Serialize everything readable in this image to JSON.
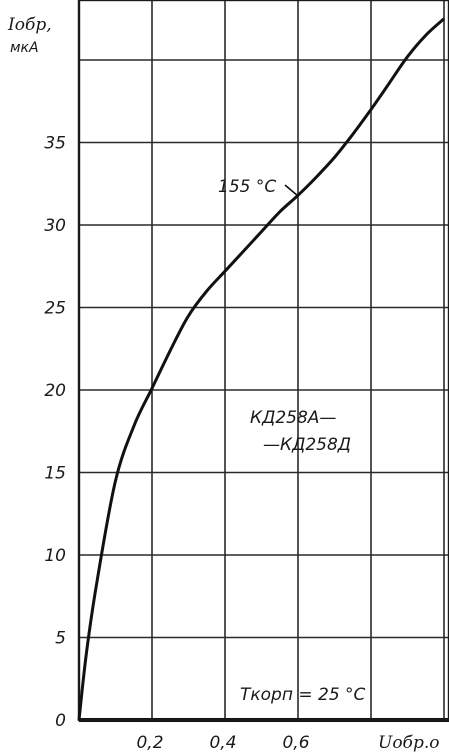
{
  "chart_data": {
    "type": "line",
    "title": "",
    "ylabel": "Iобр,",
    "ylabel_unit": "мкА",
    "xlabel": "Uобр.о",
    "xlim": [
      0,
      1.0
    ],
    "ylim": [
      0,
      42.5
    ],
    "x_ticks": [
      0.2,
      0.4,
      0.6,
      0.8,
      1.0
    ],
    "x_tick_labels": [
      "0,2",
      "0,4",
      "0,6"
    ],
    "y_ticks": [
      0,
      5,
      10,
      15,
      20,
      25,
      30,
      35,
      40
    ],
    "y_tick_labels": [
      "0",
      "5",
      "10",
      "15",
      "20",
      "25",
      "30",
      "35"
    ],
    "grid": true,
    "series": [
      {
        "name": "155 °C",
        "x": [
          0.0,
          0.02,
          0.05,
          0.1,
          0.15,
          0.2,
          0.25,
          0.3,
          0.35,
          0.4,
          0.45,
          0.5,
          0.55,
          0.6,
          0.65,
          0.7,
          0.75,
          0.8,
          0.85,
          0.9,
          0.95,
          1.0
        ],
        "y": [
          0.0,
          4.0,
          8.5,
          14.5,
          17.8,
          20.1,
          22.4,
          24.5,
          26.0,
          27.2,
          28.4,
          29.6,
          30.8,
          31.8,
          32.9,
          34.1,
          35.5,
          37.0,
          38.6,
          40.2,
          41.5,
          42.5
        ]
      }
    ],
    "annotations": [
      {
        "text": "155 °C",
        "target_series": "155 °C"
      },
      {
        "text": "КД258А—"
      },
      {
        "text": "—КД258Д"
      },
      {
        "text": "Tкорп = 25 °C"
      }
    ]
  }
}
